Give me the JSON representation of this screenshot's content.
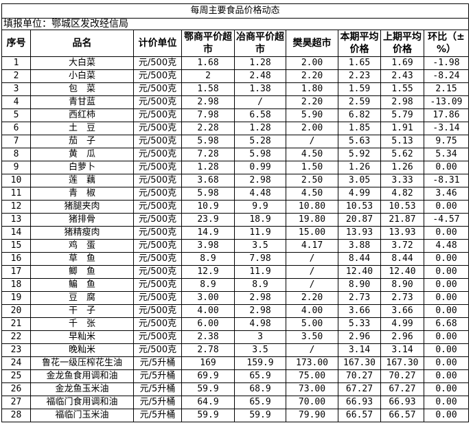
{
  "title": "每周主要食品价格动态",
  "reporting_unit": "填报单位：鄂城区发改经信局",
  "headers": [
    "序号",
    "品名",
    "计价单位",
    "鄂商平价超市",
    "冶商平价超市",
    "樊昊超市",
    "本期平均价格",
    "上期平均价格",
    "环比（±%）"
  ],
  "rows": [
    [
      "1",
      "大白菜",
      "元/500克",
      "1.68",
      "1.28",
      "2.00",
      "1.65",
      "1.69",
      "-1.98"
    ],
    [
      "2",
      "小白菜",
      "元/500克",
      "2",
      "2.48",
      "2.20",
      "2.23",
      "2.43",
      "-8.24"
    ],
    [
      "3",
      "包　菜",
      "元/500克",
      "1.58",
      "1.38",
      "1.80",
      "1.59",
      "1.55",
      "2.15"
    ],
    [
      "4",
      "青甘蓝",
      "元/500克",
      "2.98",
      "/",
      "2.20",
      "2.59",
      "2.98",
      "-13.09"
    ],
    [
      "5",
      "西红柿",
      "元/500克",
      "7.98",
      "6.58",
      "5.90",
      "6.82",
      "5.79",
      "17.86"
    ],
    [
      "6",
      "土　豆",
      "元/500克",
      "2.28",
      "1.28",
      "2.00",
      "1.85",
      "1.91",
      "-3.14"
    ],
    [
      "7",
      "茄　子",
      "元/500克",
      "5.98",
      "5.28",
      "/",
      "5.63",
      "5.13",
      "9.75"
    ],
    [
      "8",
      "黄　瓜",
      "元/500克",
      "7.28",
      "5.98",
      "4.50",
      "5.92",
      "5.62",
      "5.34"
    ],
    [
      "9",
      "白萝卜",
      "元/500克",
      "1.28",
      "0.99",
      "1.50",
      "1.26",
      "1.26",
      "0.00"
    ],
    [
      "10",
      "莲　藕",
      "元/500克",
      "3.68",
      "2.98",
      "2.50",
      "3.05",
      "3.33",
      "-8.31"
    ],
    [
      "11",
      "青　椒",
      "元/500克",
      "5.98",
      "4.48",
      "4.50",
      "4.99",
      "4.82",
      "3.46"
    ],
    [
      "12",
      "猪腿夹肉",
      "元/500克",
      "10.9",
      "9.9",
      "10.80",
      "10.53",
      "10.53",
      "0.00"
    ],
    [
      "13",
      "猪排骨",
      "元/500克",
      "23.9",
      "18.9",
      "19.80",
      "20.87",
      "21.87",
      "-4.57"
    ],
    [
      "14",
      "猪精瘦肉",
      "元/500克",
      "14.9",
      "11.9",
      "15.00",
      "13.93",
      "13.93",
      "0.00"
    ],
    [
      "15",
      "鸡　蛋",
      "元/500克",
      "3.98",
      "3.5",
      "4.17",
      "3.88",
      "3.72",
      "4.48"
    ],
    [
      "16",
      "草　鱼",
      "元/500克",
      "8.9",
      "7.98",
      "/",
      "8.44",
      "8.44",
      "0.00"
    ],
    [
      "17",
      "鲫　鱼",
      "元/500克",
      "12.9",
      "11.9",
      "/",
      "12.40",
      "12.40",
      "0.00"
    ],
    [
      "18",
      "鳊　鱼",
      "元/500克",
      "8.9",
      "8.9",
      "/",
      "8.90",
      "8.90",
      "0.00"
    ],
    [
      "19",
      "豆　腐",
      "元/500克",
      "3.00",
      "2.98",
      "2.20",
      "2.73",
      "2.73",
      "0.00"
    ],
    [
      "20",
      "干　子",
      "元/500克",
      "4.00",
      "2.98",
      "4.00",
      "3.66",
      "3.66",
      "0.00"
    ],
    [
      "21",
      "千　张",
      "元/500克",
      "6.00",
      "4.98",
      "5.00",
      "5.33",
      "4.99",
      "6.68"
    ],
    [
      "22",
      "早籼米",
      "元/500克",
      "2.38",
      "3",
      "3.50",
      "2.96",
      "2.96",
      "0.00"
    ],
    [
      "23",
      "晚籼米",
      "元/500克",
      "2.78",
      "3.5",
      "/",
      "3.14",
      "3.14",
      "0.00"
    ],
    [
      "24",
      "鲁花一级压榨花生油",
      "元/5升桶",
      "169",
      "159.9",
      "173.00",
      "167.30",
      "167.30",
      "0.00"
    ],
    [
      "25",
      "金龙鱼食用调和油",
      "元/5升桶",
      "69.9",
      "65.9",
      "75.00",
      "70.27",
      "70.27",
      "0.00"
    ],
    [
      "26",
      "金龙鱼玉米油",
      "元/5升桶",
      "59.9",
      "68.9",
      "73.00",
      "67.27",
      "67.27",
      "0.00"
    ],
    [
      "27",
      "福临门食用调和油",
      "元/5升桶",
      "64.9",
      "65.9",
      "70.00",
      "66.93",
      "66.93",
      "0.00"
    ],
    [
      "28",
      "福临门玉米油",
      "元/5升桶",
      "59.9",
      "59.9",
      "79.90",
      "66.57",
      "66.57",
      "0.00"
    ]
  ]
}
